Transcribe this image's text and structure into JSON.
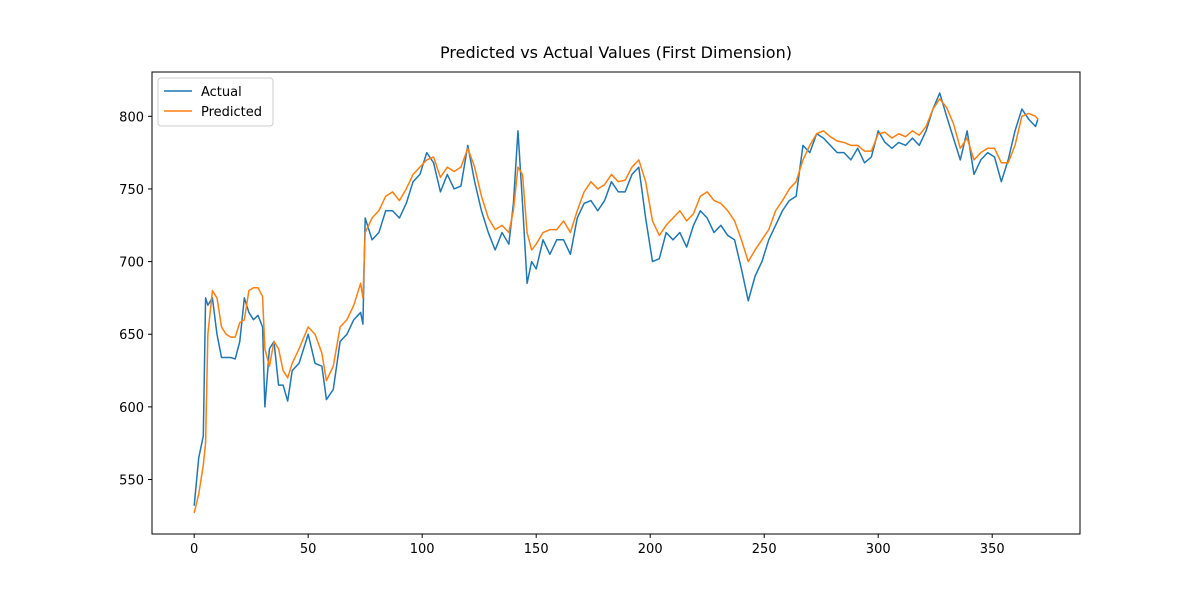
{
  "chart_data": {
    "type": "line",
    "title": "Predicted vs Actual Values (First Dimension)",
    "x": [
      0,
      2,
      4,
      5,
      6,
      8,
      10,
      12,
      14,
      16,
      18,
      20,
      22,
      24,
      26,
      28,
      30,
      31,
      33,
      35,
      37,
      39,
      41,
      43,
      46,
      50,
      53,
      56,
      58,
      61,
      64,
      67,
      70,
      73,
      74,
      75,
      78,
      81,
      84,
      87,
      90,
      93,
      96,
      99,
      102,
      105,
      108,
      111,
      114,
      117,
      120,
      123,
      126,
      129,
      132,
      135,
      138,
      140,
      142,
      144,
      146,
      148,
      150,
      153,
      156,
      159,
      162,
      165,
      168,
      171,
      174,
      177,
      180,
      183,
      186,
      189,
      192,
      195,
      198,
      201,
      204,
      207,
      210,
      213,
      216,
      219,
      222,
      225,
      228,
      231,
      234,
      237,
      240,
      243,
      246,
      249,
      252,
      255,
      258,
      261,
      264,
      267,
      270,
      273,
      276,
      279,
      282,
      285,
      288,
      291,
      294,
      297,
      300,
      303,
      306,
      309,
      312,
      315,
      318,
      321,
      324,
      327,
      330,
      333,
      336,
      339,
      342,
      345,
      348,
      351,
      354,
      357,
      360,
      363,
      366,
      369,
      370
    ],
    "series": [
      {
        "name": "Actual",
        "color": "#1f77b4",
        "values": [
          532,
          565,
          580,
          675,
          670,
          675,
          650,
          634,
          634,
          634,
          633,
          645,
          675,
          665,
          660,
          663,
          655,
          600,
          640,
          645,
          615,
          615,
          604,
          625,
          630,
          650,
          630,
          628,
          605,
          612,
          645,
          650,
          660,
          665,
          657,
          730,
          715,
          720,
          735,
          735,
          730,
          740,
          755,
          760,
          775,
          768,
          748,
          760,
          750,
          752,
          780,
          755,
          735,
          720,
          708,
          720,
          712,
          740,
          790,
          740,
          685,
          700,
          695,
          715,
          705,
          715,
          715,
          705,
          730,
          740,
          742,
          735,
          742,
          755,
          748,
          748,
          760,
          765,
          730,
          700,
          702,
          720,
          715,
          720,
          710,
          725,
          735,
          730,
          720,
          725,
          718,
          715,
          695,
          673,
          690,
          700,
          715,
          725,
          735,
          742,
          745,
          780,
          775,
          788,
          785,
          780,
          775,
          775,
          770,
          778,
          768,
          772,
          790,
          782,
          778,
          782,
          780,
          785,
          780,
          790,
          805,
          816,
          800,
          785,
          770,
          790,
          760,
          770,
          775,
          772,
          755,
          770,
          790,
          805,
          798,
          793,
          798
        ]
      },
      {
        "name": "Predicted",
        "color": "#ff7f0e",
        "values": [
          527,
          540,
          560,
          575,
          650,
          680,
          675,
          655,
          650,
          648,
          648,
          658,
          660,
          680,
          682,
          682,
          676,
          640,
          628,
          645,
          640,
          625,
          620,
          630,
          640,
          655,
          650,
          637,
          618,
          628,
          655,
          660,
          670,
          685,
          675,
          720,
          730,
          735,
          745,
          748,
          742,
          750,
          760,
          765,
          770,
          772,
          758,
          765,
          762,
          765,
          778,
          765,
          745,
          730,
          722,
          725,
          720,
          735,
          765,
          760,
          720,
          708,
          712,
          720,
          722,
          722,
          728,
          720,
          735,
          748,
          755,
          750,
          753,
          760,
          755,
          756,
          765,
          770,
          755,
          728,
          718,
          725,
          730,
          735,
          728,
          733,
          745,
          748,
          742,
          740,
          735,
          728,
          715,
          700,
          708,
          715,
          722,
          735,
          742,
          750,
          755,
          770,
          780,
          788,
          790,
          786,
          783,
          782,
          780,
          780,
          776,
          776,
          788,
          789,
          785,
          788,
          786,
          790,
          787,
          793,
          805,
          812,
          806,
          795,
          778,
          785,
          770,
          775,
          778,
          778,
          768,
          768,
          780,
          800,
          802,
          800,
          798
        ]
      }
    ],
    "xlim": [
      -18.5,
      388.5
    ],
    "ylim": [
      512.5,
      830.5
    ],
    "xticks": [
      0,
      50,
      100,
      150,
      200,
      250,
      300,
      350
    ],
    "yticks": [
      550,
      600,
      650,
      700,
      750,
      800
    ],
    "legend": "upper left"
  }
}
